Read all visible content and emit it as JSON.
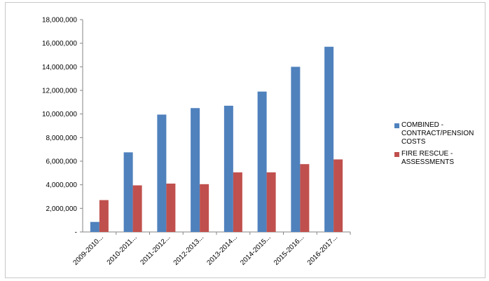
{
  "chart_data": {
    "type": "bar",
    "categories": [
      "2009-2010...",
      "2010-2011...",
      "2011-2012...",
      "2012-2013...",
      "2013-2014...",
      "2014-2015...",
      "2015-2016...",
      "2016-2017..."
    ],
    "series": [
      {
        "name": "COMBINED - CONTRACT/PENSION COSTS",
        "color": "#4f81bd",
        "values": [
          850000,
          6750000,
          9950000,
          10500000,
          10700000,
          11900000,
          14000000,
          15700000
        ]
      },
      {
        "name": "FIRE RESCUE - ASSESSMENTS",
        "color": "#c0504d",
        "values": [
          2700000,
          3950000,
          4100000,
          4050000,
          5050000,
          5050000,
          5750000,
          6150000
        ]
      }
    ],
    "ylim": [
      0,
      18000000
    ],
    "yticks": [
      0,
      2000000,
      4000000,
      6000000,
      8000000,
      10000000,
      12000000,
      14000000,
      16000000,
      18000000
    ],
    "ytick_labels": [
      "-",
      "2,000,000",
      "4,000,000",
      "6,000,000",
      "8,000,000",
      "10,000,000",
      "12,000,000",
      "14,000,000",
      "16,000,000",
      "18,000,000"
    ],
    "grid": false,
    "legend_position": "right"
  }
}
